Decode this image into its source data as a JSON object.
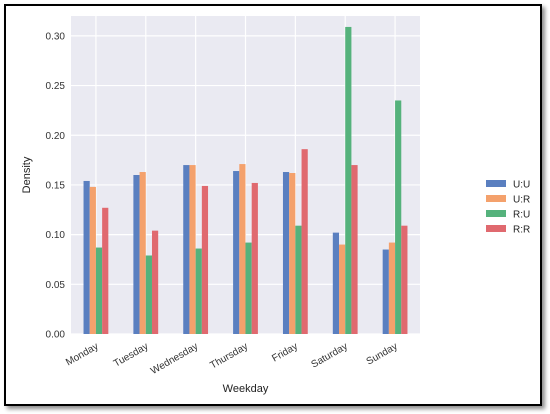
{
  "chart_data": {
    "type": "bar",
    "title": "",
    "xlabel": "Weekday",
    "ylabel": "Density",
    "ylim": [
      0,
      0.32
    ],
    "yticks": [
      0.0,
      0.05,
      0.1,
      0.15,
      0.2,
      0.25,
      0.3
    ],
    "ytick_labels": [
      "0.00",
      "0.05",
      "0.10",
      "0.15",
      "0.20",
      "0.25",
      "0.30"
    ],
    "grid": true,
    "legend_position": "right",
    "categories": [
      "Monday",
      "Tuesday",
      "Wednesday",
      "Thursday",
      "Friday",
      "Saturday",
      "Sunday"
    ],
    "series": [
      {
        "name": "U:U",
        "color": "#5a7fc0",
        "values": [
          0.154,
          0.16,
          0.17,
          0.164,
          0.163,
          0.102,
          0.085
        ]
      },
      {
        "name": "U:R",
        "color": "#f4a16c",
        "values": [
          0.148,
          0.163,
          0.17,
          0.171,
          0.162,
          0.09,
          0.092
        ]
      },
      {
        "name": "R:U",
        "color": "#55b27c",
        "values": [
          0.087,
          0.079,
          0.086,
          0.092,
          0.109,
          0.309,
          0.235
        ]
      },
      {
        "name": "R:R",
        "color": "#e0696f",
        "values": [
          0.127,
          0.104,
          0.149,
          0.152,
          0.186,
          0.17,
          0.109
        ]
      }
    ]
  }
}
